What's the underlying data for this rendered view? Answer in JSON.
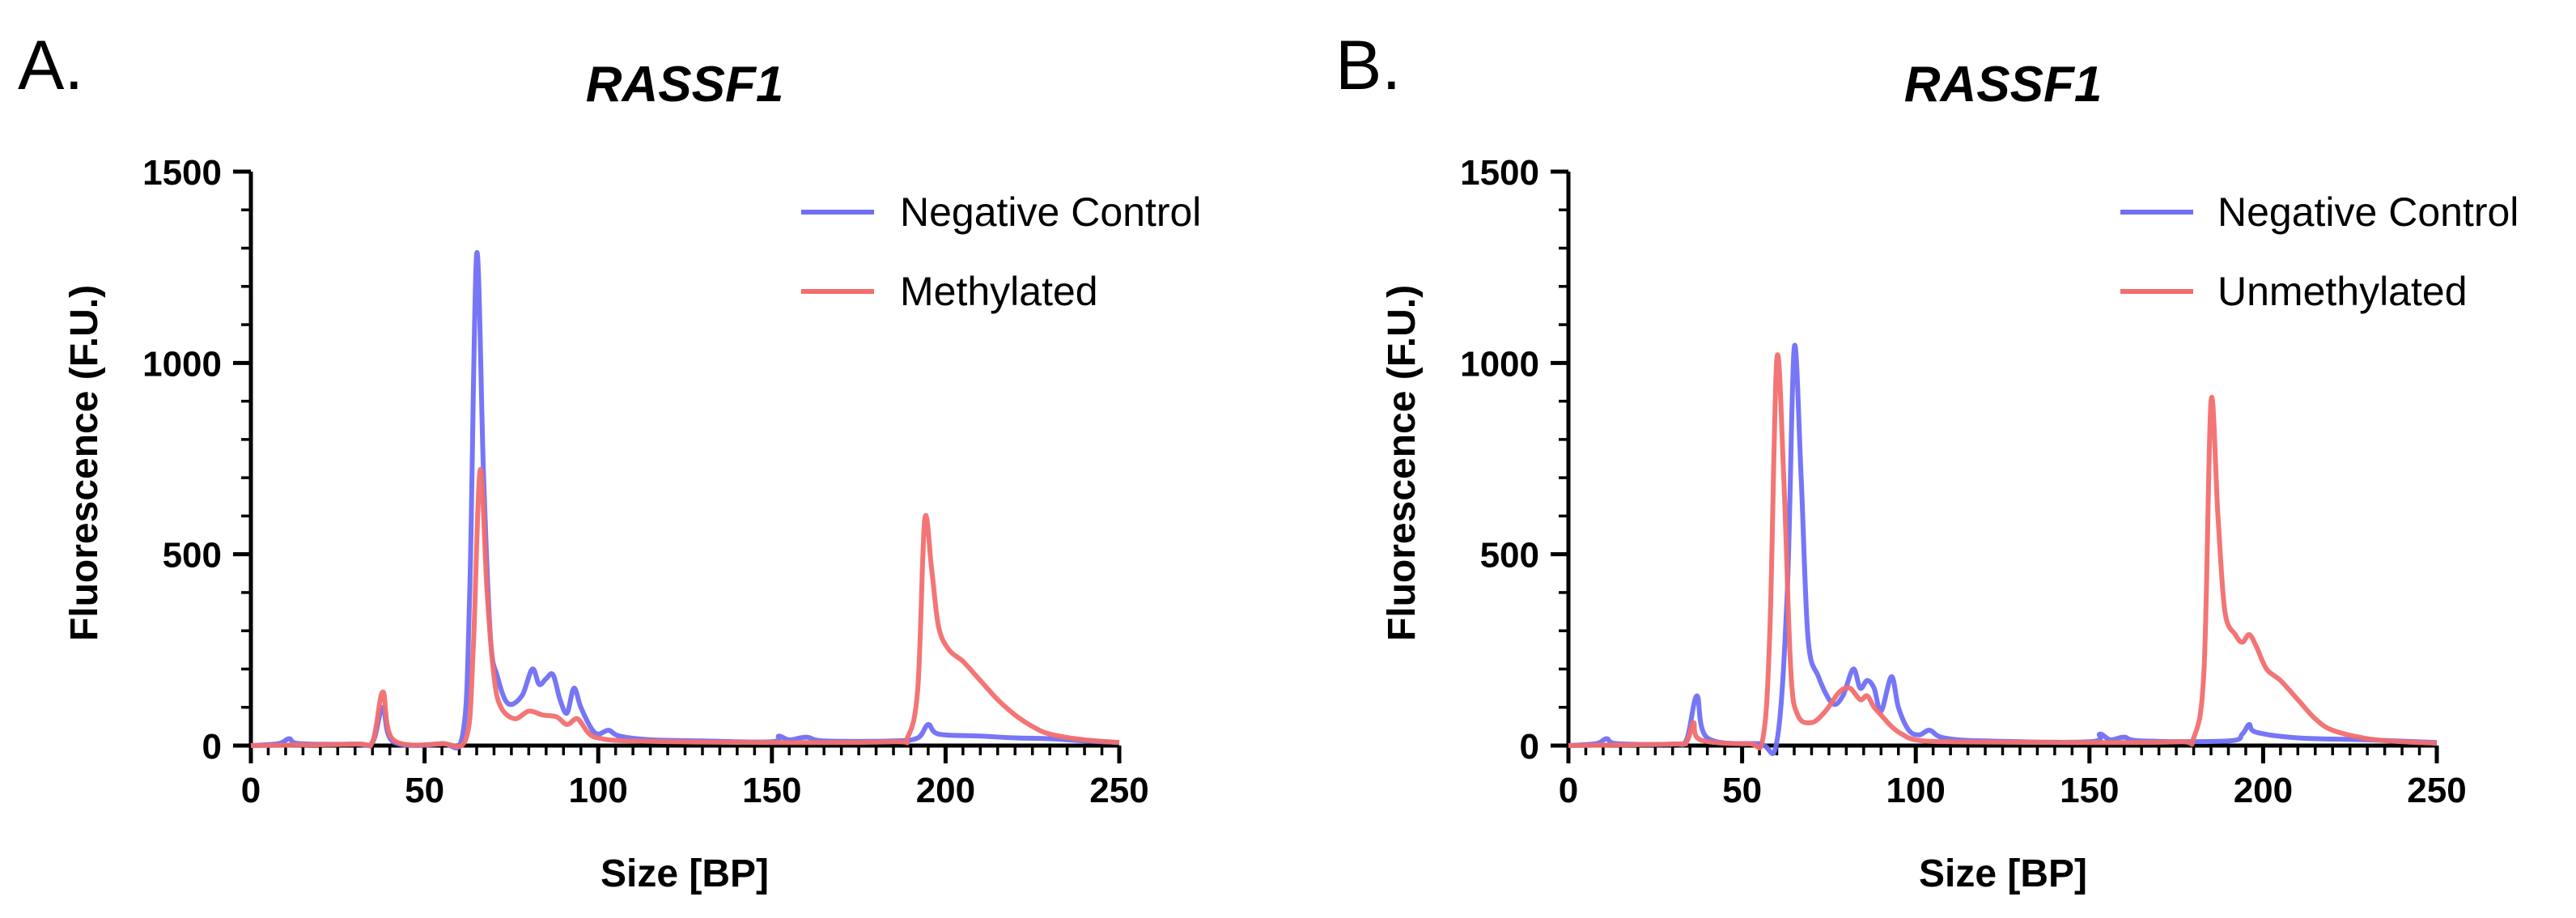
{
  "figure": {
    "panel_labels": [
      "A.",
      "B."
    ]
  },
  "chart_data": [
    {
      "type": "line",
      "panel_label": "A.",
      "title": "RASSF1",
      "xlabel": "Size [BP]",
      "ylabel": "Fluorescence (F.U.)",
      "xlim": [
        0,
        250
      ],
      "ylim": [
        0,
        1500
      ],
      "xticks": [
        0,
        50,
        100,
        150,
        200,
        250
      ],
      "yticks": [
        0,
        500,
        1000,
        1500
      ],
      "legend_position": "top-right",
      "series": [
        {
          "name": "Negative Control",
          "color": "#6f6ff5",
          "points": [
            [
              0,
              0
            ],
            [
              8,
              5
            ],
            [
              11,
              18
            ],
            [
              14,
              5
            ],
            [
              30,
              4
            ],
            [
              35,
              8
            ],
            [
              38,
              100
            ],
            [
              41,
              10
            ],
            [
              55,
              5
            ],
            [
              61,
              30
            ],
            [
              63,
              400
            ],
            [
              65,
              1285
            ],
            [
              67,
              700
            ],
            [
              69,
              280
            ],
            [
              71,
              180
            ],
            [
              74,
              110
            ],
            [
              78,
              130
            ],
            [
              81,
              200
            ],
            [
              83,
              160
            ],
            [
              85,
              175
            ],
            [
              87,
              185
            ],
            [
              89,
              120
            ],
            [
              91,
              85
            ],
            [
              93,
              150
            ],
            [
              95,
              100
            ],
            [
              98,
              45
            ],
            [
              100,
              30
            ],
            [
              103,
              40
            ],
            [
              106,
              25
            ],
            [
              115,
              15
            ],
            [
              130,
              12
            ],
            [
              150,
              10
            ],
            [
              152,
              25
            ],
            [
              155,
              15
            ],
            [
              160,
              22
            ],
            [
              165,
              12
            ],
            [
              185,
              12
            ],
            [
              192,
              20
            ],
            [
              195,
              55
            ],
            [
              198,
              30
            ],
            [
              210,
              25
            ],
            [
              220,
              20
            ],
            [
              230,
              18
            ],
            [
              240,
              12
            ],
            [
              250,
              8
            ]
          ]
        },
        {
          "name": "Methylated",
          "color": "#f26e6e",
          "points": [
            [
              0,
              0
            ],
            [
              30,
              4
            ],
            [
              35,
              10
            ],
            [
              38,
              140
            ],
            [
              41,
              15
            ],
            [
              55,
              5
            ],
            [
              62,
              20
            ],
            [
              64,
              250
            ],
            [
              66,
              720
            ],
            [
              68,
              400
            ],
            [
              70,
              180
            ],
            [
              72,
              100
            ],
            [
              76,
              70
            ],
            [
              80,
              90
            ],
            [
              84,
              80
            ],
            [
              88,
              75
            ],
            [
              91,
              55
            ],
            [
              94,
              70
            ],
            [
              97,
              35
            ],
            [
              100,
              20
            ],
            [
              110,
              12
            ],
            [
              150,
              8
            ],
            [
              185,
              10
            ],
            [
              189,
              20
            ],
            [
              192,
              150
            ],
            [
              194,
              590
            ],
            [
              196,
              460
            ],
            [
              198,
              310
            ],
            [
              201,
              250
            ],
            [
              205,
              220
            ],
            [
              210,
              170
            ],
            [
              215,
              120
            ],
            [
              220,
              80
            ],
            [
              225,
              50
            ],
            [
              230,
              30
            ],
            [
              240,
              15
            ],
            [
              250,
              8
            ]
          ]
        }
      ]
    },
    {
      "type": "line",
      "panel_label": "B.",
      "title": "RASSF1",
      "xlabel": "Size [BP]",
      "ylabel": "Fluorescence (F.U.)",
      "xlim": [
        0,
        250
      ],
      "ylim": [
        0,
        1500
      ],
      "xticks": [
        0,
        50,
        100,
        150,
        200,
        250
      ],
      "yticks": [
        0,
        500,
        1000,
        1500
      ],
      "legend_position": "top-right",
      "series": [
        {
          "name": "Negative Control",
          "color": "#6f6ff5",
          "points": [
            [
              0,
              0
            ],
            [
              8,
              5
            ],
            [
              11,
              18
            ],
            [
              14,
              5
            ],
            [
              30,
              4
            ],
            [
              34,
              15
            ],
            [
              37,
              130
            ],
            [
              40,
              20
            ],
            [
              55,
              5
            ],
            [
              60,
              10
            ],
            [
              63,
              400
            ],
            [
              65,
              1040
            ],
            [
              67,
              700
            ],
            [
              69,
              280
            ],
            [
              72,
              180
            ],
            [
              76,
              110
            ],
            [
              79,
              130
            ],
            [
              82,
              200
            ],
            [
              84,
              150
            ],
            [
              86,
              170
            ],
            [
              88,
              150
            ],
            [
              90,
              90
            ],
            [
              93,
              180
            ],
            [
              95,
              100
            ],
            [
              98,
              40
            ],
            [
              101,
              28
            ],
            [
              104,
              40
            ],
            [
              108,
              20
            ],
            [
              120,
              12
            ],
            [
              150,
              10
            ],
            [
              153,
              30
            ],
            [
              156,
              15
            ],
            [
              160,
              22
            ],
            [
              165,
              12
            ],
            [
              190,
              12
            ],
            [
              194,
              30
            ],
            [
              196,
              55
            ],
            [
              198,
              35
            ],
            [
              210,
              20
            ],
            [
              230,
              15
            ],
            [
              250,
              8
            ]
          ]
        },
        {
          "name": "Unmethylated",
          "color": "#f26e6e",
          "points": [
            [
              0,
              0
            ],
            [
              30,
              4
            ],
            [
              34,
              10
            ],
            [
              36,
              60
            ],
            [
              38,
              15
            ],
            [
              52,
              5
            ],
            [
              56,
              20
            ],
            [
              58,
              300
            ],
            [
              60,
              1010
            ],
            [
              62,
              700
            ],
            [
              64,
              200
            ],
            [
              66,
              80
            ],
            [
              70,
              60
            ],
            [
              74,
              90
            ],
            [
              78,
              140
            ],
            [
              81,
              150
            ],
            [
              84,
              120
            ],
            [
              86,
              130
            ],
            [
              88,
              100
            ],
            [
              90,
              80
            ],
            [
              93,
              50
            ],
            [
              96,
              30
            ],
            [
              100,
              15
            ],
            [
              110,
              10
            ],
            [
              150,
              8
            ],
            [
              176,
              10
            ],
            [
              180,
              20
            ],
            [
              183,
              200
            ],
            [
              185,
              900
            ],
            [
              187,
              600
            ],
            [
              189,
              350
            ],
            [
              192,
              290
            ],
            [
              194,
              270
            ],
            [
              196,
              290
            ],
            [
              198,
              260
            ],
            [
              201,
              200
            ],
            [
              205,
              170
            ],
            [
              210,
              120
            ],
            [
              215,
              70
            ],
            [
              220,
              40
            ],
            [
              230,
              18
            ],
            [
              240,
              10
            ],
            [
              250,
              6
            ]
          ]
        }
      ]
    }
  ]
}
